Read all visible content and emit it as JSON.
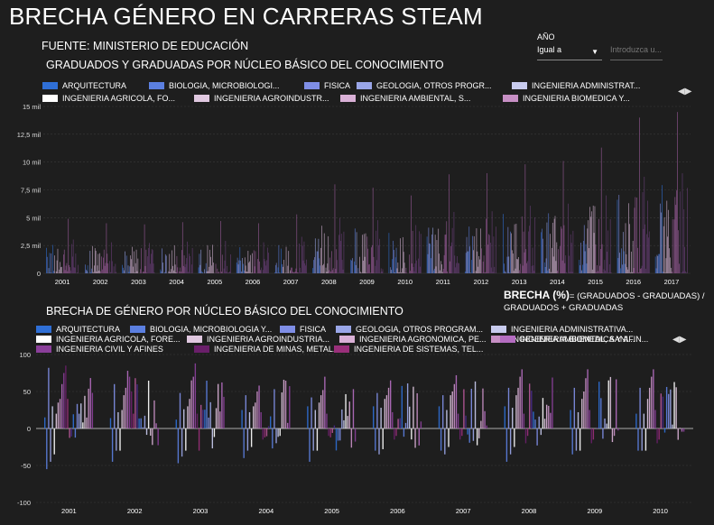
{
  "title": "BRECHA GÉNERO EN CARRERAS STEAM",
  "source": "FUENTE: MINISTERIO DE EDUCACIÓN",
  "filter": {
    "label": "AÑO",
    "operator": "Igual a",
    "placeholder": "Introduzca u..."
  },
  "nav": {
    "prev": "◀",
    "next": "▶"
  },
  "brecha_note": {
    "bold": "BRECHA (%)",
    "rest": "= (GRADUADOS - GRADUADAS) /",
    "line2": "GRADUADOS + GRADUADAS"
  },
  "colors": [
    "#2f6fd6",
    "#5b7fe0",
    "#7f8ee6",
    "#9aa6e8",
    "#c8cbee",
    "#ffffff",
    "#e0c8e0",
    "#d9b0d6",
    "#c78fc4",
    "#b46cc0",
    "#8a3f9a",
    "#6a1f6a",
    "#9a2f7a",
    "#b8579a",
    "#4a2a8a"
  ],
  "chart_data": [
    {
      "type": "bar",
      "title": "GRADUADOS Y GRADUADAS POR NÚCLEO BÁSICO DEL CONOCIMIENTO",
      "legend": [
        "ARQUITECTURA",
        "BIOLOGIA, MICROBIOLOGI...",
        "FISICA",
        "GEOLOGIA, OTROS PROGR...",
        "INGENIERIA ADMINISTRAT...",
        "INGENIERIA AGRICOLA, FO...",
        "INGENIERIA AGROINDUSTR...",
        "INGENIERIA AMBIENTAL, S...",
        "INGENIERIA BIOMEDICA Y..."
      ],
      "categories": [
        "2001",
        "2002",
        "2003",
        "2004",
        "2005",
        "2006",
        "2007",
        "2008",
        "2009",
        "2010",
        "2011",
        "2012",
        "2013",
        "2014",
        "2015",
        "2016",
        "2017"
      ],
      "max_values": [
        4900,
        4500,
        4400,
        4600,
        4700,
        4500,
        5300,
        8000,
        7700,
        7000,
        8900,
        9000,
        9800,
        10100,
        11300,
        14000,
        14500
      ],
      "yticks": [
        "0",
        "2,5 mil",
        "5 mil",
        "7,5 mil",
        "10 mil",
        "12,5 mil",
        "15 mil"
      ],
      "ylim": [
        0,
        15000
      ]
    },
    {
      "type": "bar",
      "title": "BRECHA DE GÉNERO POR NÚCLEO BÁSICO DEL CONOCIMIENTO",
      "legend": [
        "ARQUITECTURA",
        "BIOLOGIA, MICROBIOLOGIA Y...",
        "FISICA",
        "GEOLOGIA, OTROS PROGRAM...",
        "INGENIERIA ADMINISTRATIVA...",
        "INGENIERIA AGRICOLA, FORE...",
        "INGENIERIA AGROINDUSTRIA...",
        "INGENIERIA AGRONOMICA, PE...",
        "INGENIERIA AMBIENTAL, SANI...",
        "INGENIERIA BIOMEDICA Y AFIN...",
        "INGENIERIA CIVIL Y AFINES",
        "INGENIERIA DE MINAS, METAL...",
        "INGENIERIA DE SISTEMAS, TEL..."
      ],
      "categories": [
        "2001",
        "2002",
        "2003",
        "2004",
        "2005",
        "2006",
        "2007",
        "2008",
        "2009",
        "2010"
      ],
      "yticks": [
        "-100",
        "-50",
        "0",
        "50",
        "100"
      ],
      "ylim": [
        -100,
        100
      ],
      "series_sample": [
        [
          15,
          -55,
          82,
          -45,
          30,
          -35,
          20,
          35,
          40,
          60,
          75,
          85,
          40
        ],
        [
          14,
          -45,
          60,
          -30,
          22,
          -30,
          25,
          45,
          55,
          78,
          70,
          50,
          20
        ],
        [
          12,
          -47,
          48,
          -38,
          26,
          -30,
          30,
          40,
          65,
          70,
          88,
          20,
          -30
        ],
        [
          25,
          -40,
          45,
          -30,
          22,
          -25,
          30,
          35,
          50,
          58,
          22,
          -15,
          -12
        ],
        [
          30,
          -45,
          42,
          -30,
          25,
          -30,
          35,
          45,
          52,
          70,
          20,
          -10,
          -12
        ],
        [
          30,
          -30,
          48,
          -35,
          28,
          -28,
          40,
          45,
          55,
          65,
          22,
          -15,
          -10
        ],
        [
          30,
          -30,
          45,
          -35,
          25,
          -25,
          45,
          50,
          60,
          72,
          20,
          -15,
          -10
        ],
        [
          30,
          -45,
          55,
          -35,
          28,
          -25,
          45,
          55,
          70,
          80,
          20,
          -20,
          -10
        ],
        [
          25,
          -35,
          55,
          -30,
          22,
          -30,
          40,
          50,
          68,
          80,
          25,
          -20,
          -15
        ],
        [
          20,
          -30,
          55,
          -30,
          20,
          -30,
          40,
          55,
          70,
          80,
          25,
          -20,
          -15
        ]
      ]
    }
  ]
}
